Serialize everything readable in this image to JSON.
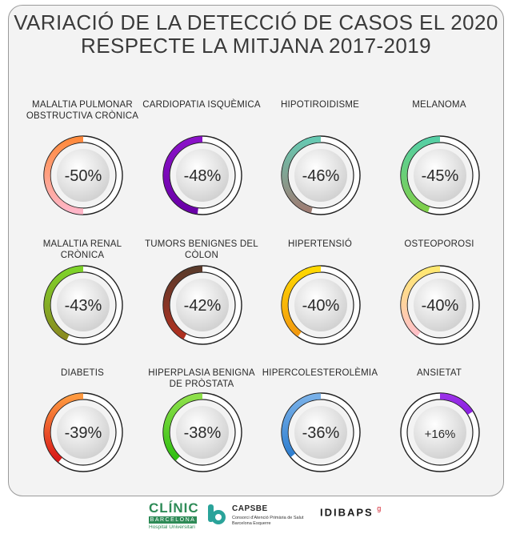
{
  "title": {
    "line1": "VARIACIÓ DE LA DETECCIÓ DE CASOS EL 2020",
    "line2": "RESPECTE LA MITJANA 2017-2019"
  },
  "chart_data": {
    "type": "donut-grid",
    "title": "VARIACIÓ DE LA DETECCIÓ DE CASOS EL 2020 RESPECTE LA MITJANA 2017-2019",
    "unit": "%",
    "items": [
      {
        "label": "MALALTIA PULMONAR OBSTRUCTIVA CRÒNICA",
        "value": -50,
        "display": "-50%",
        "color_start": "#ff8a3d",
        "color_end": "#ffb6c8"
      },
      {
        "label": "CARDIOPATIA ISQUÈMICA",
        "value": -48,
        "display": "-48%",
        "color_start": "#8a12c8",
        "color_end": "#6a00a8"
      },
      {
        "label": "HIPOTIROIDISME",
        "value": -46,
        "display": "-46%",
        "color_start": "#66c9b2",
        "color_end": "#9e7d74"
      },
      {
        "label": "MELANOMA",
        "value": -45,
        "display": "-45%",
        "color_start": "#55cfa5",
        "color_end": "#7fcf4a"
      },
      {
        "label": "MALALTIA RENAL CRÒNICA",
        "value": -43,
        "display": "-43%",
        "color_start": "#7ed32a",
        "color_end": "#8a8a20"
      },
      {
        "label": "TUMORS BENIGNES DEL CÒLON",
        "value": -42,
        "display": "-42%",
        "color_start": "#5a3a2a",
        "color_end": "#b03020"
      },
      {
        "label": "HIPERTENSIÓ",
        "value": -40,
        "display": "-40%",
        "color_start": "#ffd800",
        "color_end": "#f39a10"
      },
      {
        "label": "OSTEOPOROSI",
        "value": -40,
        "display": "-40%",
        "color_start": "#ffe870",
        "color_end": "#ffc0c8"
      },
      {
        "label": "DIABETIS",
        "value": -39,
        "display": "-39%",
        "color_start": "#ff9a40",
        "color_end": "#d81818"
      },
      {
        "label": "HIPERPLASIA BENIGNA DE PRÒSTATA",
        "value": -38,
        "display": "-38%",
        "color_start": "#8ee04a",
        "color_end": "#2fbf10"
      },
      {
        "label": "HIPERCOLESTEROLÈMIA",
        "value": -36,
        "display": "-36%",
        "color_start": "#78b0e8",
        "color_end": "#2f7fd0"
      },
      {
        "label": "ANSIETAT",
        "value": 16,
        "display": "+16%",
        "color_start": "#9a30e8",
        "color_end": "#8a20e0"
      }
    ]
  },
  "footer": {
    "clinic_name": "CLÍNIC",
    "clinic_city": "BARCELONA",
    "clinic_sub": "Hospital Universitari",
    "capsbe_name": "CAPSBE",
    "capsbe_line1": "Consorci d'Atenció Primària de Salut",
    "capsbe_line2": "Barcelona Esquerre",
    "idibaps_name": "IDIBAPS",
    "idibaps_sup": "g",
    "clinic_color": "#2e8b57",
    "capsbe_color": "#2aa39a",
    "idibaps_color": "#d21e2b"
  }
}
